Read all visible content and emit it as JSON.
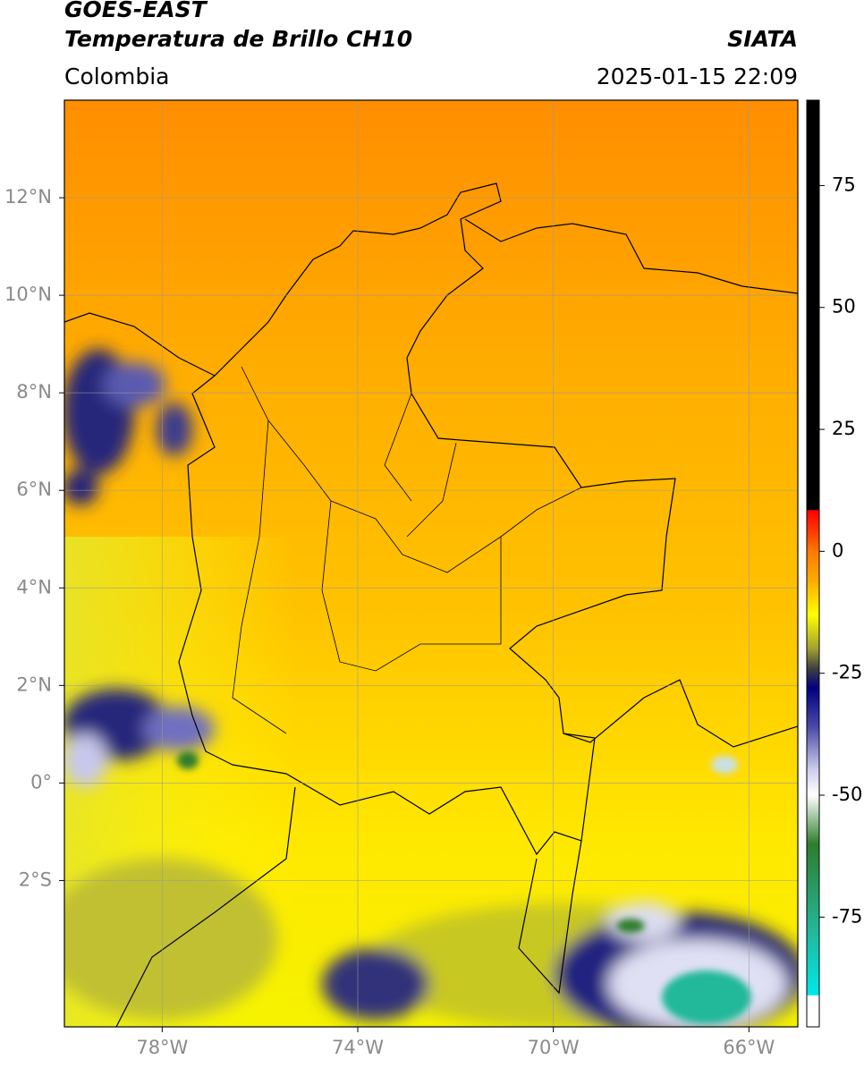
{
  "header": {
    "title": "GOES-EAST",
    "subtitle": "Temperatura de Brillo CH10",
    "source": "SIATA",
    "region": "Colombia",
    "datetime": "2025-01-15 22:09"
  },
  "map": {
    "lon_range": [
      -80,
      -65
    ],
    "lat_range": [
      -5,
      14
    ],
    "grid": true,
    "lat_ticks": [
      {
        "value": 12,
        "label": "12°N"
      },
      {
        "value": 10,
        "label": "10°N"
      },
      {
        "value": 8,
        "label": "8°N"
      },
      {
        "value": 6,
        "label": "6°N"
      },
      {
        "value": 4,
        "label": "4°N"
      },
      {
        "value": 2,
        "label": "2°N"
      },
      {
        "value": 0,
        "label": "0°"
      },
      {
        "value": -2,
        "label": "2°S"
      }
    ],
    "lon_ticks": [
      {
        "value": -78,
        "label": "78°W"
      },
      {
        "value": -74,
        "label": "74°W"
      },
      {
        "value": -70,
        "label": "70°W"
      },
      {
        "value": -66,
        "label": "66°W"
      }
    ]
  },
  "colorbar": {
    "range": [
      -97.5,
      92.5
    ],
    "ticks": [
      75,
      50,
      25,
      0,
      -25,
      -50,
      -75
    ],
    "stops": [
      {
        "value": 92.5,
        "color": "#000000"
      },
      {
        "value": 8.5,
        "color": "#000000"
      },
      {
        "value": 8.4,
        "color": "#ff0000"
      },
      {
        "value": 3,
        "color": "#ff4a00"
      },
      {
        "value": 0,
        "color": "#ff7a00"
      },
      {
        "value": -6,
        "color": "#ffaa00"
      },
      {
        "value": -13,
        "color": "#ffff00"
      },
      {
        "value": -20,
        "color": "#a0a030"
      },
      {
        "value": -24,
        "color": "#404040"
      },
      {
        "value": -28,
        "color": "#000080"
      },
      {
        "value": -36,
        "color": "#4a4aa8"
      },
      {
        "value": -45,
        "color": "#d0d0ee"
      },
      {
        "value": -50,
        "color": "#ffffff"
      },
      {
        "value": -60,
        "color": "#2e7d2e"
      },
      {
        "value": -78,
        "color": "#22b89a"
      },
      {
        "value": -91,
        "color": "#00e8e8"
      },
      {
        "value": -91.1,
        "color": "#ffffff"
      },
      {
        "value": -97.5,
        "color": "#ffffff"
      }
    ]
  }
}
